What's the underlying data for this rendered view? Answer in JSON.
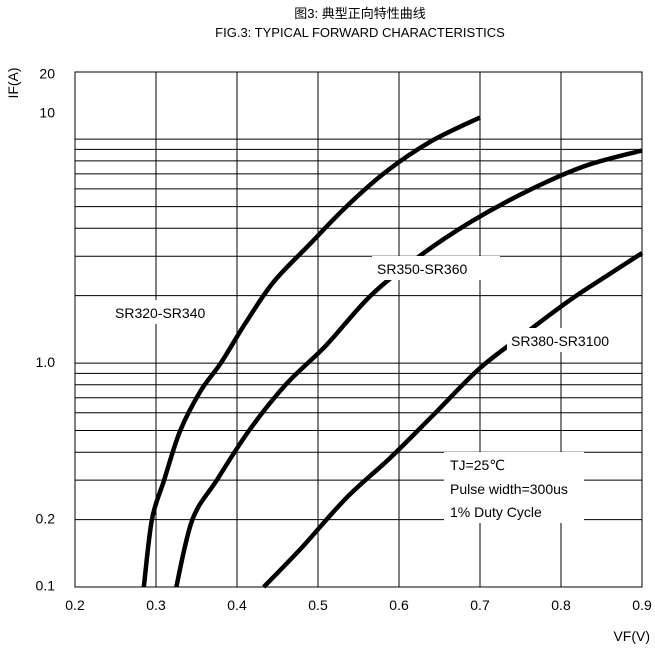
{
  "chart_data": {
    "type": "line",
    "title_cn": "图3: 典型正向特性曲线",
    "title": "FIG.3: TYPICAL FORWARD CHARACTERISTICS",
    "xlabel": "VF(V)",
    "ylabel": "IF(A)",
    "x_scale": "linear",
    "y_scale": "log",
    "xlim": [
      0.2,
      0.9
    ],
    "ylim": [
      0.1,
      20
    ],
    "grid": true,
    "x_ticks": [
      0.2,
      0.3,
      0.4,
      0.5,
      0.6,
      0.7,
      0.8,
      0.9
    ],
    "x_tick_labels": [
      "0.2",
      "0.3",
      "0.4",
      "0.5",
      "0.6",
      "0.7",
      "0.8",
      "0.9"
    ],
    "y_tick_labels": [
      {
        "value": 0.1,
        "label": "0.1"
      },
      {
        "value": 0.2,
        "label": "0.2"
      },
      {
        "value": 1.0,
        "label": "1.0"
      },
      {
        "value": 10,
        "label": "10"
      },
      {
        "value": 20,
        "label": "20"
      }
    ],
    "y_grid_values": [
      0.1,
      0.2,
      0.3,
      0.4,
      0.5,
      0.6,
      0.7,
      0.8,
      0.9,
      1,
      2,
      3,
      4,
      5,
      6,
      7,
      8,
      9,
      10,
      20
    ],
    "series": [
      {
        "name": "SR320-SR340",
        "x": [
          0.285,
          0.295,
          0.31,
          0.33,
          0.355,
          0.38,
          0.41,
          0.445,
          0.49,
          0.535,
          0.585,
          0.64,
          0.7
        ],
        "y": [
          0.1,
          0.2,
          0.3,
          0.5,
          0.75,
          1.0,
          1.5,
          2.3,
          3.4,
          5.0,
          7.2,
          9.8,
          12.5
        ]
      },
      {
        "name": "SR350-SR360",
        "x": [
          0.325,
          0.345,
          0.375,
          0.415,
          0.46,
          0.51,
          0.565,
          0.625,
          0.69,
          0.76,
          0.83,
          0.9
        ],
        "y": [
          0.1,
          0.2,
          0.3,
          0.5,
          0.8,
          1.2,
          2.0,
          3.0,
          4.3,
          5.9,
          7.6,
          8.9
        ]
      },
      {
        "name": "SR380-SR3100",
        "x": [
          0.433,
          0.48,
          0.535,
          0.59,
          0.645,
          0.7,
          0.755,
          0.81,
          0.86,
          0.9
        ],
        "y": [
          0.1,
          0.15,
          0.25,
          0.38,
          0.6,
          0.95,
          1.35,
          1.9,
          2.5,
          3.1
        ]
      }
    ],
    "annotations": [
      "TJ=25℃",
      "Pulse width=300us",
      "1% Duty Cycle"
    ]
  }
}
